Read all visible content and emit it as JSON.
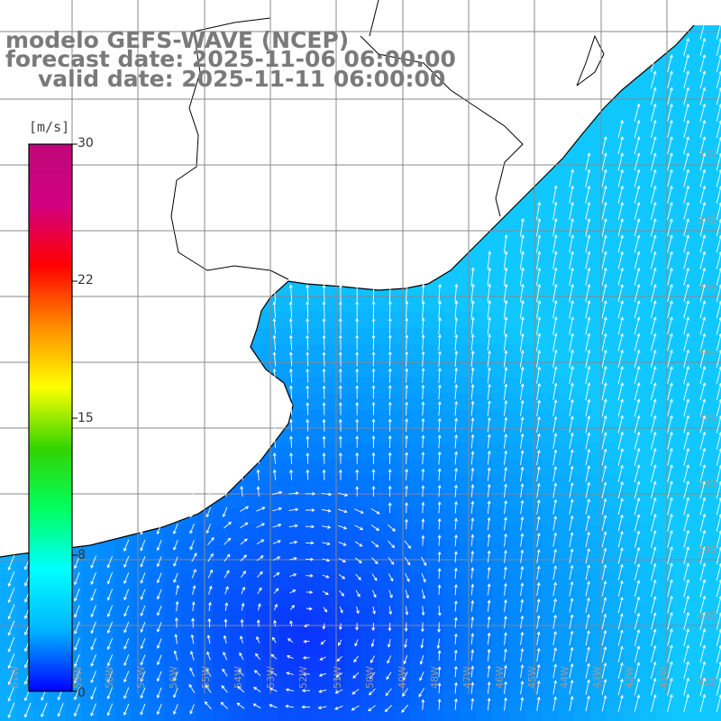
{
  "header": {
    "model_line": "modelo GEFS-WAVE (NCEP)",
    "forecast_line": "forecast date: 2025-11-06 06:00:00",
    "valid_line": "valid date: 2025-11-11 06:00:00"
  },
  "colorbar": {
    "unit": "[m/s]",
    "ticks": [
      "30",
      "22",
      "15",
      "8",
      "0"
    ],
    "colors": [
      "#0000ff",
      "#00b4ff",
      "#00ffff",
      "#00ff60",
      "#33d400",
      "#ffff00",
      "#ff8c00",
      "#ff0000",
      "#d20080",
      "#c0087a"
    ]
  },
  "map": {
    "grid_lon": [
      -62,
      -60,
      -58,
      -56,
      -54,
      -52,
      -50,
      -48,
      -46,
      -44,
      -42,
      -40
    ],
    "grid_lat": [
      -30,
      -31,
      -32,
      -33,
      -34,
      -35,
      -36,
      -37,
      -38,
      -39,
      -40,
      -41
    ],
    "lat_labels": [
      "33S",
      "34S",
      "35S",
      "36S",
      "37S",
      "38S",
      "39S",
      "40S",
      "41S"
    ],
    "lon_labels": [
      "61W",
      "60W",
      "59W",
      "58W",
      "57W",
      "56W",
      "55W",
      "54W",
      "53W",
      "52W",
      "51W",
      "50W",
      "49W",
      "48W",
      "47W",
      "46W",
      "45W",
      "44W",
      "43W",
      "42W",
      "41W"
    ],
    "field_colors": {
      "weak": "#0a30ff",
      "mid": "#0080ff",
      "strong": "#10c8ff"
    },
    "land_color": "#ffffff",
    "coast_color": "#000000"
  }
}
